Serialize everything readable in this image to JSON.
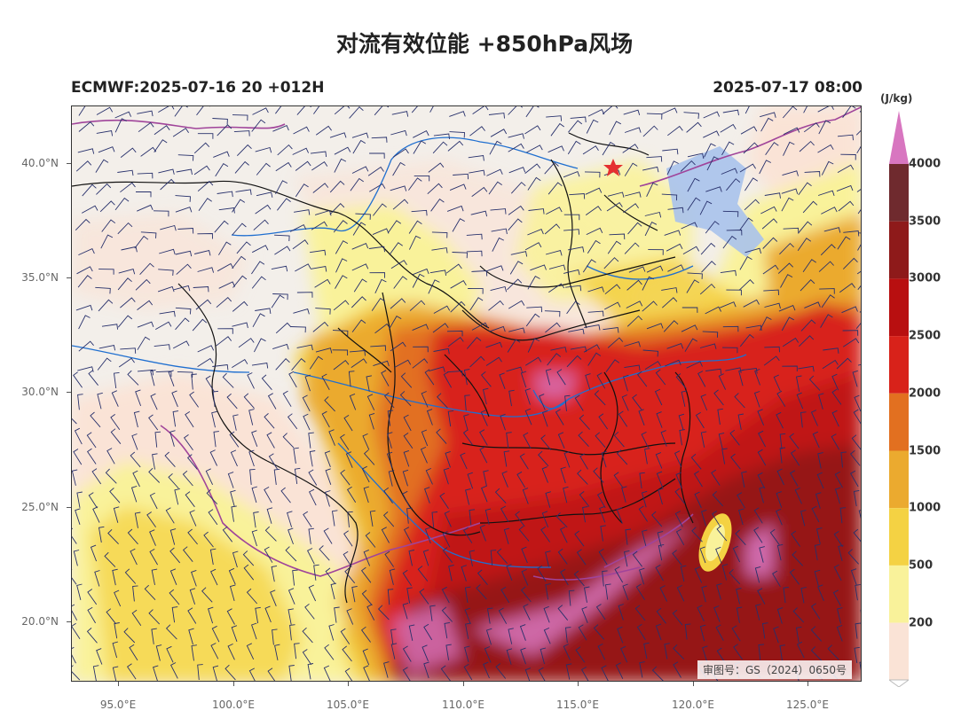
{
  "title": "对流有效位能 +850hPa风场",
  "subtitle_left": "ECMWF:2025-07-16 20 +012H",
  "subtitle_right": "2025-07-17 08:00",
  "review_number": "审图号：GS（2024）0650号",
  "lat_labels": [
    "40.0°N",
    "35.0°N",
    "30.0°N",
    "25.0°N",
    "20.0°N"
  ],
  "lon_labels": [
    "95.0°E",
    "100.0°E",
    "105.0°E",
    "110.0°E",
    "115.0°E",
    "120.0°E",
    "125.0°E"
  ],
  "colorbar": {
    "unit": "(J/kg)",
    "ticks": [
      "200",
      "500",
      "1000",
      "1500",
      "2000",
      "2500",
      "3000",
      "3500",
      "4000"
    ],
    "colors": [
      "#fae3d6",
      "#f9f29a",
      "#f4d243",
      "#ebaa2f",
      "#e27020",
      "#d8221a",
      "#b80f10",
      "#8e1a1a",
      "#6f2a2e",
      "#d876c0"
    ]
  },
  "map": {
    "extent": {
      "lon_min": 93,
      "lon_max": 127.4,
      "lat_min": 17.4,
      "lat_max": 42.4
    },
    "capital_marker": "red-star",
    "colors": {
      "land": "#f3efea",
      "rivers": "#1f6fd0",
      "borders": "#111111",
      "intl_border": "#a0449a",
      "barbs": "#27306b"
    }
  }
}
